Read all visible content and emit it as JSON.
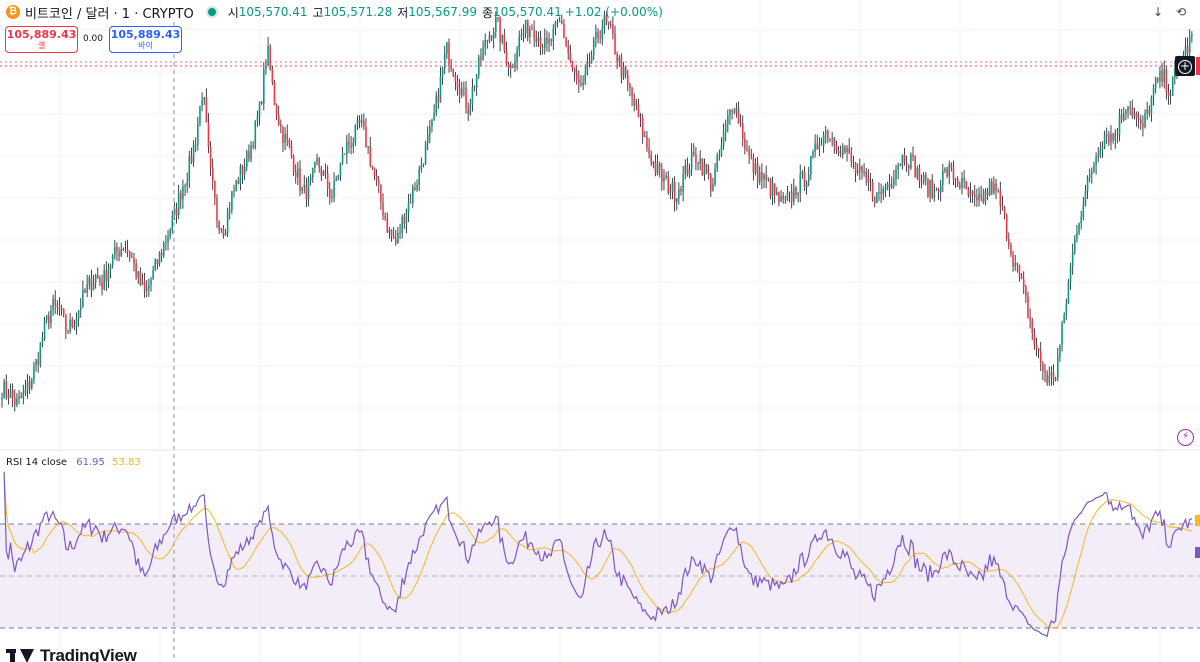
{
  "header": {
    "coin_icon": "bitcoin-icon",
    "coin_glyph": "₿",
    "symbol": "비트코인 / 달러 · 1 · CRYPTO",
    "ohlc": {
      "open_label": "시",
      "open": "105,570.41",
      "high_label": "고",
      "high": "105,571.28",
      "low_label": "저",
      "low": "105,567.99",
      "close_label": "종",
      "close": "105,570.41",
      "change": "+1.02 (+0.00%)"
    }
  },
  "order": {
    "sell_price": "105,889.43",
    "sell_label": "셀",
    "spread": "0.00",
    "buy_price": "105,889.43",
    "buy_label": "바이"
  },
  "controls": {
    "down_glyph": "↓",
    "reset_glyph": "⟲",
    "plus_glyph": "+",
    "bolt_glyph": "⚡"
  },
  "rsi": {
    "title": "RSI 14 close",
    "value": "61.95",
    "ma_value": "53.83"
  },
  "branding": {
    "logo_text": "TradingView"
  },
  "colors": {
    "up": "#089981",
    "down": "#f23645",
    "wick": "#131722",
    "rsi_line": "#7e57c2",
    "rsi_ma_line": "#f7b924",
    "rsi_band": "#ede7f6",
    "sell": "#f23645",
    "buy": "#2962ff"
  },
  "chart_data": {
    "type": "candlestick",
    "interval": "1",
    "last_price": 105889.43,
    "close_path": [
      0.06,
      0.05,
      0.02,
      0.04,
      0.08,
      0.14,
      0.22,
      0.27,
      0.26,
      0.21,
      0.23,
      0.28,
      0.32,
      0.35,
      0.33,
      0.38,
      0.41,
      0.43,
      0.4,
      0.34,
      0.3,
      0.35,
      0.4,
      0.45,
      0.5,
      0.57,
      0.62,
      0.7,
      0.83,
      0.62,
      0.5,
      0.47,
      0.55,
      0.6,
      0.64,
      0.7,
      0.78,
      0.93,
      0.8,
      0.72,
      0.68,
      0.62,
      0.56,
      0.58,
      0.64,
      0.6,
      0.55,
      0.62,
      0.68,
      0.7,
      0.74,
      0.68,
      0.6,
      0.53,
      0.46,
      0.43,
      0.5,
      0.55,
      0.6,
      0.67,
      0.73,
      0.83,
      0.93,
      0.88,
      0.83,
      0.78,
      0.85,
      0.92,
      0.97,
      1.0,
      0.93,
      0.88,
      0.95,
      0.98,
      0.99,
      0.96,
      0.93,
      0.97,
      1.0,
      0.92,
      0.85,
      0.82,
      0.9,
      0.96,
      1.0,
      0.97,
      0.9,
      0.85,
      0.8,
      0.74,
      0.68,
      0.63,
      0.6,
      0.58,
      0.56,
      0.6,
      0.64,
      0.66,
      0.62,
      0.58,
      0.65,
      0.73,
      0.8,
      0.74,
      0.66,
      0.62,
      0.6,
      0.58,
      0.55,
      0.53,
      0.55,
      0.58,
      0.6,
      0.64,
      0.7,
      0.72,
      0.7,
      0.68,
      0.66,
      0.62,
      0.6,
      0.58,
      0.55,
      0.57,
      0.6,
      0.64,
      0.66,
      0.64,
      0.6,
      0.58,
      0.56,
      0.6,
      0.62,
      0.6,
      0.58,
      0.55,
      0.53,
      0.55,
      0.58,
      0.55,
      0.48,
      0.4,
      0.34,
      0.27,
      0.18,
      0.12,
      0.08,
      0.1,
      0.22,
      0.36,
      0.48,
      0.55,
      0.62,
      0.68,
      0.72,
      0.7,
      0.75,
      0.8,
      0.76,
      0.72,
      0.78,
      0.84,
      0.86,
      0.82,
      0.88,
      0.92,
      0.96
    ]
  }
}
